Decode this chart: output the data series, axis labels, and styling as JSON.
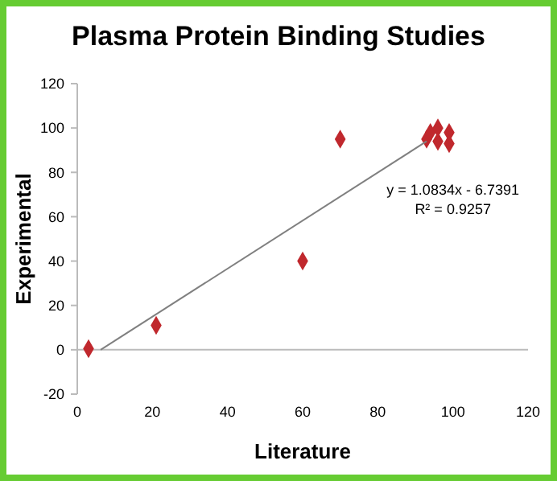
{
  "chart_data": {
    "type": "scatter",
    "title": "Plasma Protein Binding Studies",
    "xlabel": "Literature",
    "ylabel": "Experimental",
    "xlim": [
      0,
      120
    ],
    "xticks": [
      0,
      20,
      40,
      60,
      80,
      100,
      120
    ],
    "ylim": [
      -20,
      120
    ],
    "yticks": [
      -20,
      0,
      20,
      40,
      60,
      80,
      100,
      120
    ],
    "marker": "diamond",
    "annotations": [
      "y = 1.0834x - 6.7391",
      "R² = 0.9257"
    ],
    "series": [
      {
        "color": "#c0282d",
        "x": [
          3,
          21,
          60,
          70,
          93,
          94,
          96,
          96,
          99,
          99
        ],
        "values": [
          0.5,
          11,
          40,
          95,
          95,
          98,
          100,
          94,
          98,
          93
        ]
      },
      {
        "type": "line",
        "color": "#808080",
        "marker": "none",
        "x": [
          6.22,
          93
        ],
        "values": [
          0,
          94
        ]
      }
    ]
  }
}
